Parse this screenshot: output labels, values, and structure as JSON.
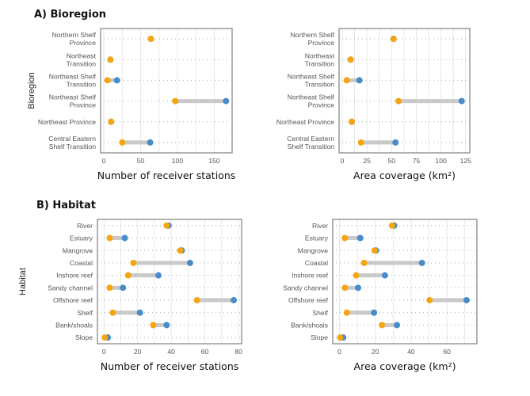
{
  "panels": {
    "A": {
      "title": "A) Bioregion"
    },
    "B": {
      "title": "B) Habitat"
    }
  },
  "colors": {
    "first": "#F5A511",
    "second": "#4A8CCB",
    "connector": "#C9C9C9",
    "grid": "#E3E3E3",
    "frame": "#888888"
  },
  "chart_data": [
    {
      "type": "dumbbell",
      "panel": "A",
      "ylabel": "Bioregion",
      "xlabel": "Number of receiver stations",
      "xlim": [
        0,
        170
      ],
      "xticks": [
        0,
        50,
        100,
        150
      ],
      "categories": [
        "Northern Shelf\nProvince",
        "Northeast\nTransition",
        "Northeast Shelf\nTransition",
        "Northeast Shelf\nProvince",
        "Northeast Province",
        "Central Eastern\nShelf Transition"
      ],
      "series": [
        {
          "color": "#F5A511",
          "values": [
            64,
            9,
            5,
            97,
            10,
            25
          ]
        },
        {
          "color": "#4A8CCB",
          "values": [
            64,
            9,
            18,
            166,
            10,
            63
          ]
        }
      ]
    },
    {
      "type": "dumbbell",
      "panel": "A",
      "ylabel": "",
      "xlabel": "Area coverage (km²)",
      "xlim": [
        0,
        126
      ],
      "xticks": [
        0,
        25,
        50,
        75,
        100,
        125
      ],
      "categories": [
        "Northern Shelf\nProvince",
        "Northeast\nTransition",
        "Northeast Shelf\nTransition",
        "Northeast Shelf\nProvince",
        "Northeast Province",
        "Central Eastern\nShelf Transition"
      ],
      "series": [
        {
          "color": "#F5A511",
          "values": [
            52,
            8.5,
            4.6,
            57,
            9.7,
            19
          ]
        },
        {
          "color": "#4A8CCB",
          "values": [
            52,
            8.5,
            17.4,
            121,
            9.7,
            54
          ]
        }
      ]
    },
    {
      "type": "dumbbell",
      "panel": "B",
      "ylabel": "Habitat",
      "xlabel": "Number of receiver stations",
      "xlim": [
        -2,
        80
      ],
      "xticks": [
        0,
        20,
        40,
        60,
        80
      ],
      "categories": [
        "River",
        "Estuary",
        "Mangrove",
        "Coastal",
        "Inshore reef",
        "Sandy channel",
        "Offshore reef",
        "Shelf",
        "Bank/shoals",
        "Slope"
      ],
      "series": [
        {
          "color": "#F5A511",
          "values": [
            37.3,
            3.4,
            45.4,
            17.5,
            14.4,
            3.4,
            55.3,
            5.3,
            29.3,
            0.5
          ]
        },
        {
          "color": "#4A8CCB",
          "values": [
            38.4,
            12.4,
            46.3,
            51.2,
            32.4,
            11.3,
            77.2,
            21.4,
            37.3,
            2.3
          ]
        }
      ]
    },
    {
      "type": "dumbbell",
      "panel": "B",
      "ylabel": "",
      "xlabel": "Area coverage (km²)",
      "xlim": [
        -2,
        75
      ],
      "xticks": [
        0,
        20,
        40,
        60
      ],
      "categories": [
        "River",
        "Estuary",
        "Mangrove",
        "Coastal",
        "Inshore reef",
        "Sandy channel",
        "Offshore reef",
        "Shelf",
        "Bank/shoals",
        "Slope"
      ],
      "series": [
        {
          "color": "#F5A511",
          "values": [
            29.4,
            3,
            19.6,
            13.7,
            9.3,
            3,
            50.3,
            4.1,
            23.7,
            0.4
          ]
        },
        {
          "color": "#4A8CCB",
          "values": [
            30.6,
            11.6,
            20.4,
            46.1,
            25.4,
            10.4,
            71,
            19.3,
            32.1,
            2.1
          ]
        }
      ]
    }
  ]
}
